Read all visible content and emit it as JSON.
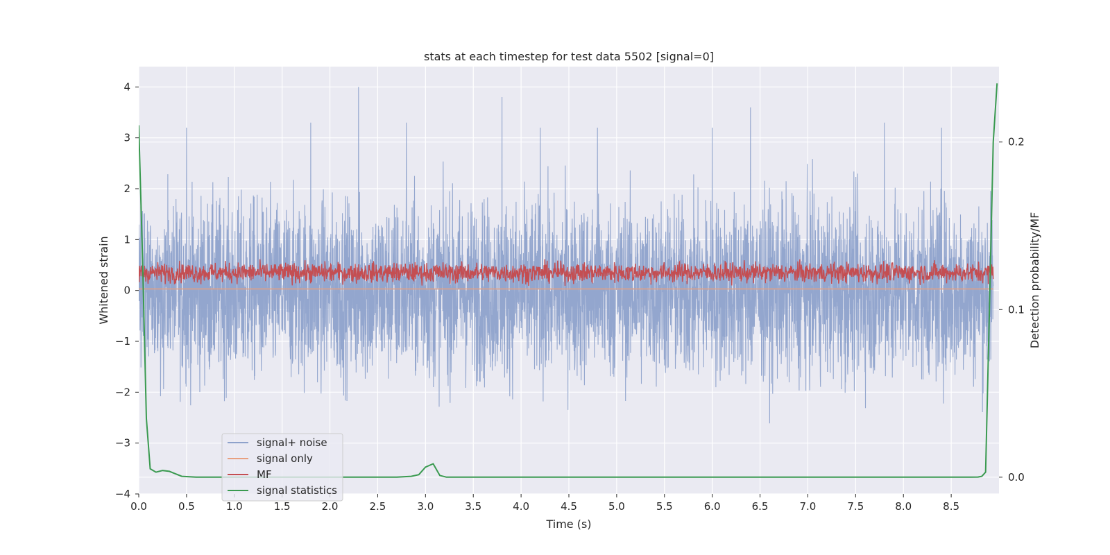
{
  "chart_data": {
    "type": "line",
    "title": "stats at each timestep for test data 5502 [signal=0]",
    "xlabel": "Time (s)",
    "ylabel": "Whitened strain",
    "y2label": "Detection probability/MF",
    "xlim": [
      0.0,
      9.0
    ],
    "ylim": [
      -4,
      4.4
    ],
    "y2lim": [
      -0.01,
      0.245
    ],
    "xticks": [
      "0.0",
      "0.5",
      "1.0",
      "1.5",
      "2.0",
      "2.5",
      "3.0",
      "3.5",
      "4.0",
      "4.5",
      "5.0",
      "5.5",
      "6.0",
      "6.5",
      "7.0",
      "7.5",
      "8.0",
      "8.5"
    ],
    "xtick_values": [
      0.0,
      0.5,
      1.0,
      1.5,
      2.0,
      2.5,
      3.0,
      3.5,
      4.0,
      4.5,
      5.0,
      5.5,
      6.0,
      6.5,
      7.0,
      7.5,
      8.0,
      8.5
    ],
    "yticks": [
      "4",
      "3",
      "2",
      "1",
      "0",
      "−1",
      "−2",
      "−3",
      "−4"
    ],
    "ytick_values": [
      4,
      3,
      2,
      1,
      0,
      -1,
      -2,
      -3,
      -4
    ],
    "y2ticks": [
      "0.2",
      "0.1",
      "0.0"
    ],
    "y2tick_values": [
      0.2,
      0.1,
      0.0
    ],
    "legend_position": "lower-left",
    "series": [
      {
        "name": "signal+ noise",
        "color": "#8ea2cb",
        "axis": "left",
        "description": "dense noisy strain, roughly between -3.7 and 4.0",
        "amplitude": 1.6,
        "peaks": {
          "x": [
            0.5,
            1.8,
            2.3,
            2.8,
            3.8,
            4.2,
            4.8,
            6.0,
            6.4,
            7.8,
            8.4
          ],
          "y": [
            3.2,
            3.3,
            4.0,
            3.3,
            3.8,
            3.2,
            3.2,
            3.2,
            3.6,
            3.3,
            3.2
          ]
        }
      },
      {
        "name": "signal only",
        "color": "#e8a080",
        "axis": "left",
        "constant": 0.03
      },
      {
        "name": "MF",
        "color": "#c44e52",
        "axis": "left",
        "mean": 0.35,
        "amplitude": 0.28
      },
      {
        "name": "signal statistics",
        "color": "#3a9a50",
        "axis": "right",
        "x": [
          0.0,
          0.04,
          0.08,
          0.12,
          0.18,
          0.25,
          0.32,
          0.45,
          0.6,
          0.9,
          1.2,
          1.8,
          2.4,
          2.7,
          2.85,
          2.93,
          3.0,
          3.08,
          3.15,
          3.22,
          3.3,
          4.0,
          5.0,
          6.0,
          7.0,
          7.5,
          8.0,
          8.5,
          8.7,
          8.78,
          8.82,
          8.86,
          8.9,
          8.94,
          8.98
        ],
        "y": [
          0.21,
          0.13,
          0.035,
          0.005,
          0.003,
          0.004,
          0.0035,
          0.0005,
          0.0,
          0.0,
          0.0,
          0.0,
          0.0,
          0.0,
          0.0005,
          0.0015,
          0.006,
          0.008,
          0.001,
          0.0,
          0.0,
          0.0,
          0.0,
          0.0,
          0.0,
          0.0,
          0.0,
          0.0,
          0.0,
          0.0001,
          0.0005,
          0.003,
          0.1,
          0.2,
          0.235
        ]
      }
    ]
  }
}
